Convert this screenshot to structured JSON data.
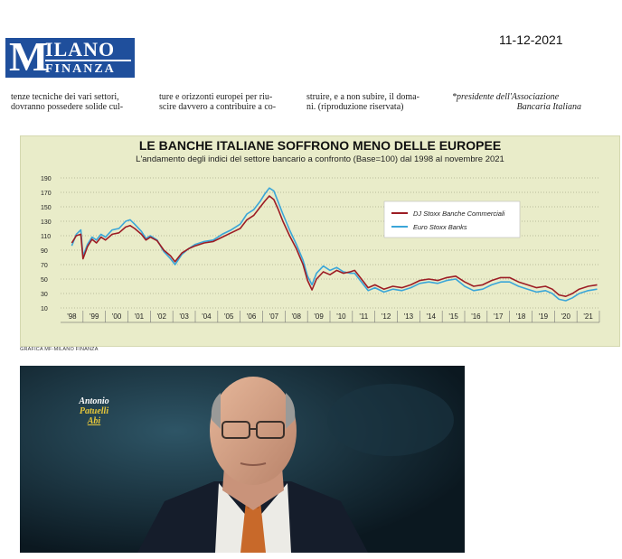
{
  "header": {
    "logo": {
      "text_big": "M",
      "text_top": "ILANO",
      "text_bottom": "FINANZA"
    },
    "date": "11-12-2021"
  },
  "article": {
    "columns": [
      {
        "line1": "tenze tecniche dei vari settori,",
        "line2": "dovranno possedere solide cul-"
      },
      {
        "line1": "ture e orizzonti europei per riu-",
        "line2": "scire davvero a contribuire a co-"
      },
      {
        "line1": "struire, e a non subire, il doma-",
        "line2": "ni. (riproduzione riservata)"
      },
      {
        "line1": "*presidente dell'Associazione",
        "line2": "Bancaria Italiana"
      }
    ]
  },
  "chart_data": {
    "type": "line",
    "title": "LE BANCHE ITALIANE SOFFRONO MENO DELLE EUROPEE",
    "subtitle": "L'andamento degli indici del settore bancario a confronto (Base=100) dal 1998 al novembre 2021",
    "x_tick_labels": [
      "'98",
      "'99",
      "'00",
      "'01",
      "'02",
      "'03",
      "'04",
      "'05",
      "'06",
      "'07",
      "'08",
      "'09",
      "'10",
      "'11",
      "'12",
      "'13",
      "'14",
      "'15",
      "'16",
      "'17",
      "'18",
      "'19",
      "'20",
      "'21"
    ],
    "y_tick_labels": [
      "190",
      "170",
      "150",
      "130",
      "110",
      "90",
      "70",
      "50",
      "30",
      "10"
    ],
    "ylim": [
      10,
      190
    ],
    "xlim": [
      1998.0,
      2022.0
    ],
    "grid": "horizontal dotted",
    "legend_position": "top-right",
    "series": [
      {
        "name": "DJ Stoxx Banche Commerciali",
        "color": "#9c1c24",
        "points": [
          [
            1998.5,
            100
          ],
          [
            1998.7,
            110
          ],
          [
            1998.9,
            112
          ],
          [
            1999.0,
            78
          ],
          [
            1999.2,
            95
          ],
          [
            1999.4,
            105
          ],
          [
            1999.6,
            100
          ],
          [
            1999.8,
            108
          ],
          [
            2000.0,
            104
          ],
          [
            2000.3,
            112
          ],
          [
            2000.6,
            114
          ],
          [
            2000.9,
            122
          ],
          [
            2001.1,
            124
          ],
          [
            2001.3,
            120
          ],
          [
            2001.6,
            112
          ],
          [
            2001.8,
            104
          ],
          [
            2002.0,
            108
          ],
          [
            2002.3,
            103
          ],
          [
            2002.6,
            90
          ],
          [
            2002.9,
            82
          ],
          [
            2003.1,
            74
          ],
          [
            2003.4,
            86
          ],
          [
            2003.7,
            92
          ],
          [
            2004.0,
            96
          ],
          [
            2004.4,
            100
          ],
          [
            2004.8,
            102
          ],
          [
            2005.2,
            108
          ],
          [
            2005.6,
            114
          ],
          [
            2006.0,
            120
          ],
          [
            2006.3,
            132
          ],
          [
            2006.6,
            138
          ],
          [
            2006.9,
            150
          ],
          [
            2007.1,
            158
          ],
          [
            2007.3,
            165
          ],
          [
            2007.5,
            160
          ],
          [
            2007.7,
            146
          ],
          [
            2007.9,
            130
          ],
          [
            2008.2,
            110
          ],
          [
            2008.5,
            92
          ],
          [
            2008.8,
            70
          ],
          [
            2009.0,
            48
          ],
          [
            2009.2,
            35
          ],
          [
            2009.4,
            50
          ],
          [
            2009.7,
            60
          ],
          [
            2010.0,
            56
          ],
          [
            2010.3,
            62
          ],
          [
            2010.6,
            58
          ],
          [
            2010.9,
            60
          ],
          [
            2011.1,
            62
          ],
          [
            2011.4,
            50
          ],
          [
            2011.7,
            38
          ],
          [
            2012.0,
            42
          ],
          [
            2012.4,
            36
          ],
          [
            2012.8,
            40
          ],
          [
            2013.2,
            38
          ],
          [
            2013.6,
            42
          ],
          [
            2014.0,
            48
          ],
          [
            2014.4,
            50
          ],
          [
            2014.8,
            48
          ],
          [
            2015.2,
            52
          ],
          [
            2015.6,
            54
          ],
          [
            2016.0,
            46
          ],
          [
            2016.4,
            40
          ],
          [
            2016.8,
            42
          ],
          [
            2017.2,
            48
          ],
          [
            2017.6,
            52
          ],
          [
            2018.0,
            52
          ],
          [
            2018.4,
            46
          ],
          [
            2018.8,
            42
          ],
          [
            2019.2,
            38
          ],
          [
            2019.6,
            40
          ],
          [
            2019.9,
            36
          ],
          [
            2020.2,
            28
          ],
          [
            2020.5,
            26
          ],
          [
            2020.8,
            30
          ],
          [
            2021.1,
            36
          ],
          [
            2021.5,
            40
          ],
          [
            2021.9,
            42
          ]
        ]
      },
      {
        "name": "Euro Stoxx Banks",
        "color": "#3aa6d8",
        "points": [
          [
            1998.5,
            96
          ],
          [
            1998.7,
            112
          ],
          [
            1998.9,
            118
          ],
          [
            1999.0,
            82
          ],
          [
            1999.2,
            98
          ],
          [
            1999.4,
            108
          ],
          [
            1999.6,
            104
          ],
          [
            1999.8,
            112
          ],
          [
            2000.0,
            108
          ],
          [
            2000.3,
            118
          ],
          [
            2000.6,
            120
          ],
          [
            2000.9,
            130
          ],
          [
            2001.1,
            132
          ],
          [
            2001.3,
            126
          ],
          [
            2001.6,
            116
          ],
          [
            2001.8,
            106
          ],
          [
            2002.0,
            110
          ],
          [
            2002.3,
            104
          ],
          [
            2002.6,
            88
          ],
          [
            2002.9,
            78
          ],
          [
            2003.1,
            70
          ],
          [
            2003.4,
            84
          ],
          [
            2003.7,
            92
          ],
          [
            2004.0,
            98
          ],
          [
            2004.4,
            102
          ],
          [
            2004.8,
            104
          ],
          [
            2005.2,
            112
          ],
          [
            2005.6,
            118
          ],
          [
            2006.0,
            126
          ],
          [
            2006.3,
            140
          ],
          [
            2006.6,
            146
          ],
          [
            2006.9,
            158
          ],
          [
            2007.1,
            168
          ],
          [
            2007.3,
            176
          ],
          [
            2007.5,
            172
          ],
          [
            2007.7,
            156
          ],
          [
            2007.9,
            140
          ],
          [
            2008.2,
            118
          ],
          [
            2008.5,
            98
          ],
          [
            2008.8,
            76
          ],
          [
            2009.0,
            54
          ],
          [
            2009.2,
            42
          ],
          [
            2009.4,
            58
          ],
          [
            2009.7,
            68
          ],
          [
            2010.0,
            62
          ],
          [
            2010.3,
            66
          ],
          [
            2010.6,
            60
          ],
          [
            2010.9,
            58
          ],
          [
            2011.1,
            58
          ],
          [
            2011.4,
            46
          ],
          [
            2011.7,
            34
          ],
          [
            2012.0,
            38
          ],
          [
            2012.4,
            32
          ],
          [
            2012.8,
            36
          ],
          [
            2013.2,
            34
          ],
          [
            2013.6,
            38
          ],
          [
            2014.0,
            44
          ],
          [
            2014.4,
            46
          ],
          [
            2014.8,
            44
          ],
          [
            2015.2,
            48
          ],
          [
            2015.6,
            50
          ],
          [
            2016.0,
            40
          ],
          [
            2016.4,
            34
          ],
          [
            2016.8,
            36
          ],
          [
            2017.2,
            42
          ],
          [
            2017.6,
            46
          ],
          [
            2018.0,
            46
          ],
          [
            2018.4,
            40
          ],
          [
            2018.8,
            36
          ],
          [
            2019.2,
            32
          ],
          [
            2019.6,
            34
          ],
          [
            2019.9,
            30
          ],
          [
            2020.2,
            22
          ],
          [
            2020.5,
            20
          ],
          [
            2020.8,
            24
          ],
          [
            2021.1,
            30
          ],
          [
            2021.5,
            34
          ],
          [
            2021.9,
            36
          ]
        ]
      }
    ]
  },
  "chart_credit": "GRAFICA MF-MILANO FINANZA",
  "photo": {
    "caption": {
      "line1": "Antonio",
      "line2": "Patuelli",
      "line3": "Abi"
    }
  }
}
